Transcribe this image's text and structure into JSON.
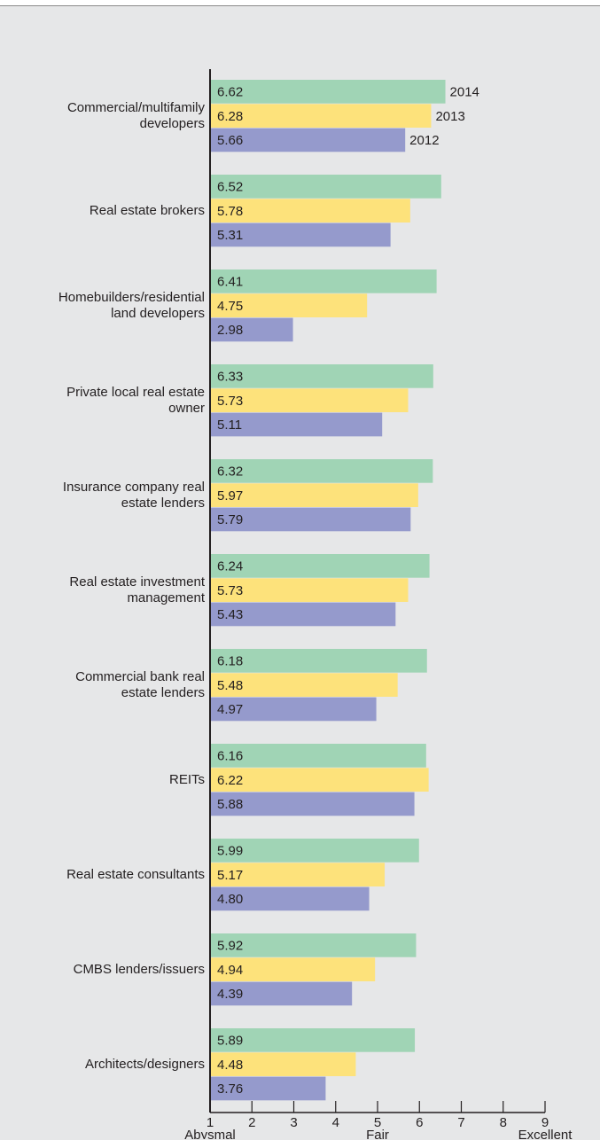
{
  "chart_data": {
    "type": "bar",
    "orientation": "horizontal",
    "categories": [
      "Commercial/multifamily developers",
      "Real estate brokers",
      "Homebuilders/residential land developers",
      "Private local real estate owner",
      "Insurance company real estate lenders",
      "Real estate investment management",
      "Commercial bank real estate lenders",
      "REITs",
      "Real estate consultants",
      "CMBS lenders/issuers",
      "Architects/designers"
    ],
    "series": [
      {
        "name": "2014",
        "color": "#a0d4b5",
        "values": [
          6.62,
          6.52,
          6.41,
          6.33,
          6.32,
          6.24,
          6.18,
          6.16,
          5.99,
          5.92,
          5.89
        ]
      },
      {
        "name": "2013",
        "color": "#fde27b",
        "values": [
          6.28,
          5.78,
          4.75,
          5.73,
          5.97,
          5.73,
          5.48,
          6.22,
          5.17,
          4.94,
          4.48
        ]
      },
      {
        "name": "2012",
        "color": "#959acc",
        "values": [
          5.66,
          5.31,
          2.98,
          5.11,
          5.79,
          5.43,
          4.97,
          5.88,
          4.8,
          4.39,
          3.76
        ],
        "value_labels": [
          "5.66",
          "5.31",
          "2.98",
          "5.11",
          "5.79",
          "5.43",
          "4.97",
          "5.88",
          "4.80",
          "4.39",
          "3.76"
        ]
      }
    ],
    "xlim": [
      1,
      9
    ],
    "xticks": [
      1,
      2,
      3,
      4,
      5,
      6,
      7,
      8,
      9
    ],
    "x_scale_labels": [
      {
        "value": 1,
        "label": "Abysmal"
      },
      {
        "value": 5,
        "label": "Fair"
      },
      {
        "value": 9,
        "label": "Excellent"
      }
    ]
  }
}
